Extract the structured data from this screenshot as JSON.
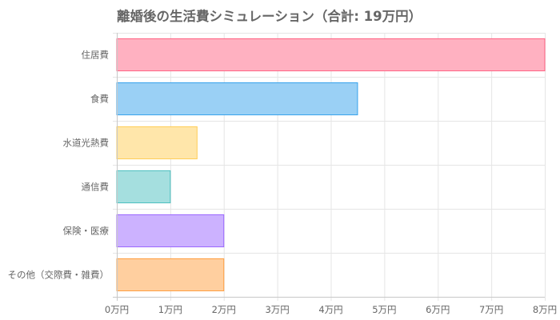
{
  "chart_data": {
    "type": "bar",
    "orientation": "horizontal",
    "title": "離婚後の生活費シミュレーション（合計: 19万円）",
    "categories": [
      "住居費",
      "食費",
      "水道光熱費",
      "通信費",
      "保険・医療",
      "その他（交際費・雑費）"
    ],
    "values": [
      8,
      4.5,
      1.5,
      1,
      2,
      2
    ],
    "unit": "万円",
    "xlim": [
      0,
      8
    ],
    "x_ticks": [
      0,
      1,
      2,
      3,
      4,
      5,
      6,
      7,
      8
    ],
    "x_tick_labels": [
      "0万円",
      "1万円",
      "2万円",
      "3万円",
      "4万円",
      "5万円",
      "6万円",
      "7万円",
      "8万円"
    ],
    "grid": true,
    "legend": "none",
    "colors": [
      {
        "fill": "#ffb1c1",
        "stroke": "#ff6384"
      },
      {
        "fill": "#9ad0f5",
        "stroke": "#36a2eb"
      },
      {
        "fill": "#ffe6aa",
        "stroke": "#ffcd56"
      },
      {
        "fill": "#a5dfdf",
        "stroke": "#4bc0c0"
      },
      {
        "fill": "#ccb2ff",
        "stroke": "#9966ff"
      },
      {
        "fill": "#ffcf9f",
        "stroke": "#ff9f40"
      }
    ]
  }
}
